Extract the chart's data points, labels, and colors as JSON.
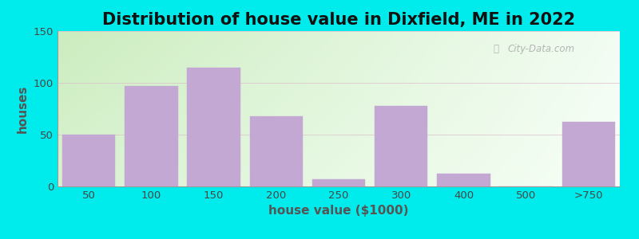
{
  "title": "Distribution of house value in Dixfield, ME in 2022",
  "xlabel": "house value ($1000)",
  "ylabel": "houses",
  "bar_labels": [
    "50",
    "100",
    "150",
    "200",
    "250",
    "300",
    "400",
    "500",
    ">750"
  ],
  "bar_values": [
    50,
    97,
    115,
    68,
    7,
    78,
    12,
    0,
    62
  ],
  "bar_color": "#c4a8d4",
  "bar_edgecolor": "#c4a8d4",
  "ylim": [
    0,
    150
  ],
  "yticks": [
    0,
    50,
    100,
    150
  ],
  "outer_bg": "#00ecec",
  "title_fontsize": 15,
  "axis_label_fontsize": 11,
  "tick_fontsize": 9.5,
  "watermark": "City-Data.com",
  "bg_color_topleft": "#cce8c0",
  "bg_color_topright": "#f0f8ec",
  "bg_color_bottomleft": "#d8efd0",
  "bg_color_bottomright": "#f8fcf8"
}
